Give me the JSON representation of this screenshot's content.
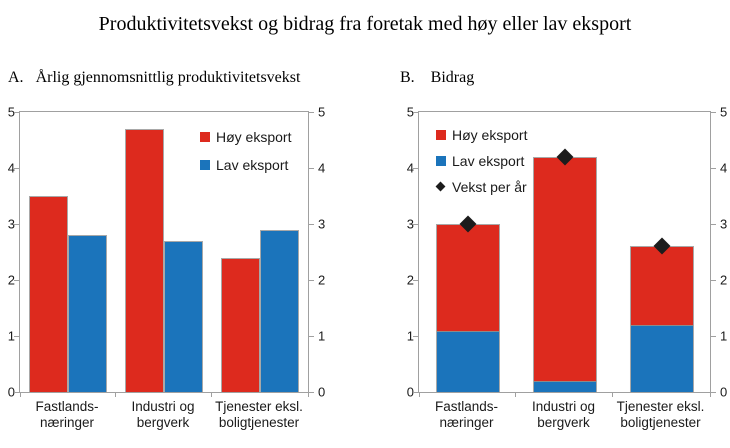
{
  "title": "Produktivitetsvekst og bidrag fra foretak med høy eller lav eksport",
  "colors": {
    "hoy": "#DD2A1E",
    "lav": "#1B74BB",
    "marker": "#1C1C1C",
    "axis": "#A0A0A0"
  },
  "chart_data": [
    {
      "type": "bar",
      "panel_letter": "A.",
      "title": "Årlig gjennomsnittlig produktivitetsvekst",
      "categories": [
        [
          "Fastlands-",
          "næringer"
        ],
        [
          "Industri og",
          "bergverk"
        ],
        [
          "Tjenester eksl.",
          "boligtjenester"
        ]
      ],
      "series": [
        {
          "name": "Høy eksport",
          "color_key": "hoy",
          "values": [
            3.5,
            4.7,
            2.4
          ]
        },
        {
          "name": "Lav eksport",
          "color_key": "lav",
          "values": [
            2.8,
            2.7,
            2.9
          ]
        }
      ],
      "ylim": [
        0,
        5
      ],
      "yticks": [
        0,
        1,
        2,
        3,
        4,
        5
      ],
      "grid": false,
      "legend_position": "top-right",
      "legend": [
        {
          "label": "Høy eksport",
          "swatch": "hoy"
        },
        {
          "label": "Lav eksport",
          "swatch": "lav"
        }
      ]
    },
    {
      "type": "stacked-bar",
      "panel_letter": "B.",
      "title": "Bidrag",
      "categories": [
        [
          "Fastlands-",
          "næringer"
        ],
        [
          "Industri og",
          "bergverk"
        ],
        [
          "Tjenester eksl.",
          "boligtjenester"
        ]
      ],
      "series": [
        {
          "name": "Høy eksport",
          "color_key": "hoy",
          "values": [
            1.9,
            4.0,
            1.4
          ]
        },
        {
          "name": "Lav eksport",
          "color_key": "lav",
          "values": [
            1.1,
            0.2,
            1.2
          ]
        }
      ],
      "totals": [
        3.0,
        4.2,
        2.6
      ],
      "markers": {
        "name": "Vekst per år",
        "shape": "diamond",
        "values": [
          3.0,
          4.2,
          2.6
        ]
      },
      "ylim": [
        0,
        5
      ],
      "yticks": [
        0,
        1,
        2,
        3,
        4,
        5
      ],
      "grid": false,
      "legend_position": "top-left",
      "legend": [
        {
          "label": "Høy eksport",
          "swatch": "hoy"
        },
        {
          "label": "Lav eksport",
          "swatch": "lav"
        },
        {
          "label": "Vekst per år",
          "swatch": "diamond"
        }
      ]
    }
  ]
}
